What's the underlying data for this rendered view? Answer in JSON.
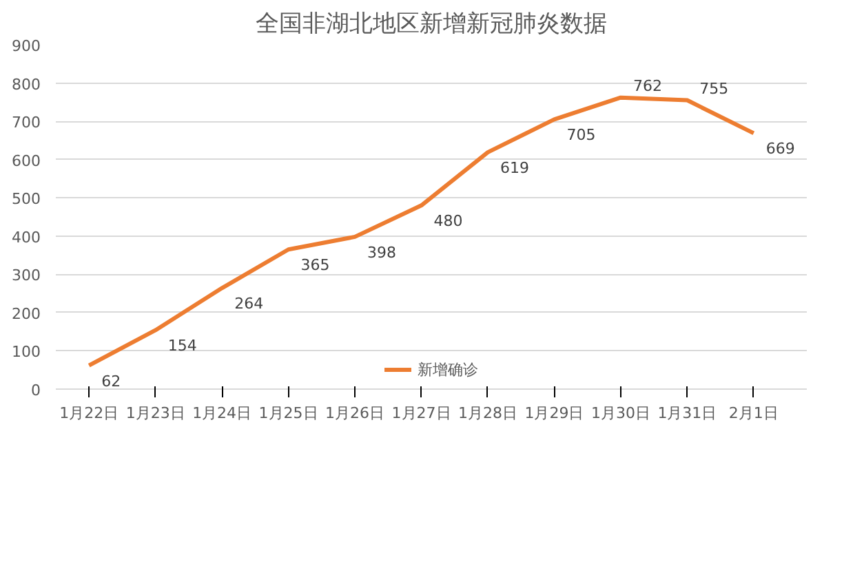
{
  "chart_data": {
    "type": "line",
    "title": "全国非湖北地区新增新冠肺炎数据",
    "categories": [
      "1月22日",
      "1月23日",
      "1月24日",
      "1月25日",
      "1月26日",
      "1月27日",
      "1月28日",
      "1月29日",
      "1月30日",
      "1月31日",
      "2月1日"
    ],
    "series": [
      {
        "name": "新增确诊",
        "color": "#ed7d31",
        "values": [
          62,
          154,
          264,
          365,
          398,
          480,
          619,
          705,
          762,
          755,
          669
        ]
      }
    ],
    "ylim": [
      0,
      900
    ],
    "yticks": [
      0,
      100,
      200,
      300,
      400,
      500,
      600,
      700,
      800,
      900
    ],
    "grid": "y",
    "legend": "bottom",
    "data_labels": true,
    "marker": "none",
    "line_style": "solid"
  }
}
